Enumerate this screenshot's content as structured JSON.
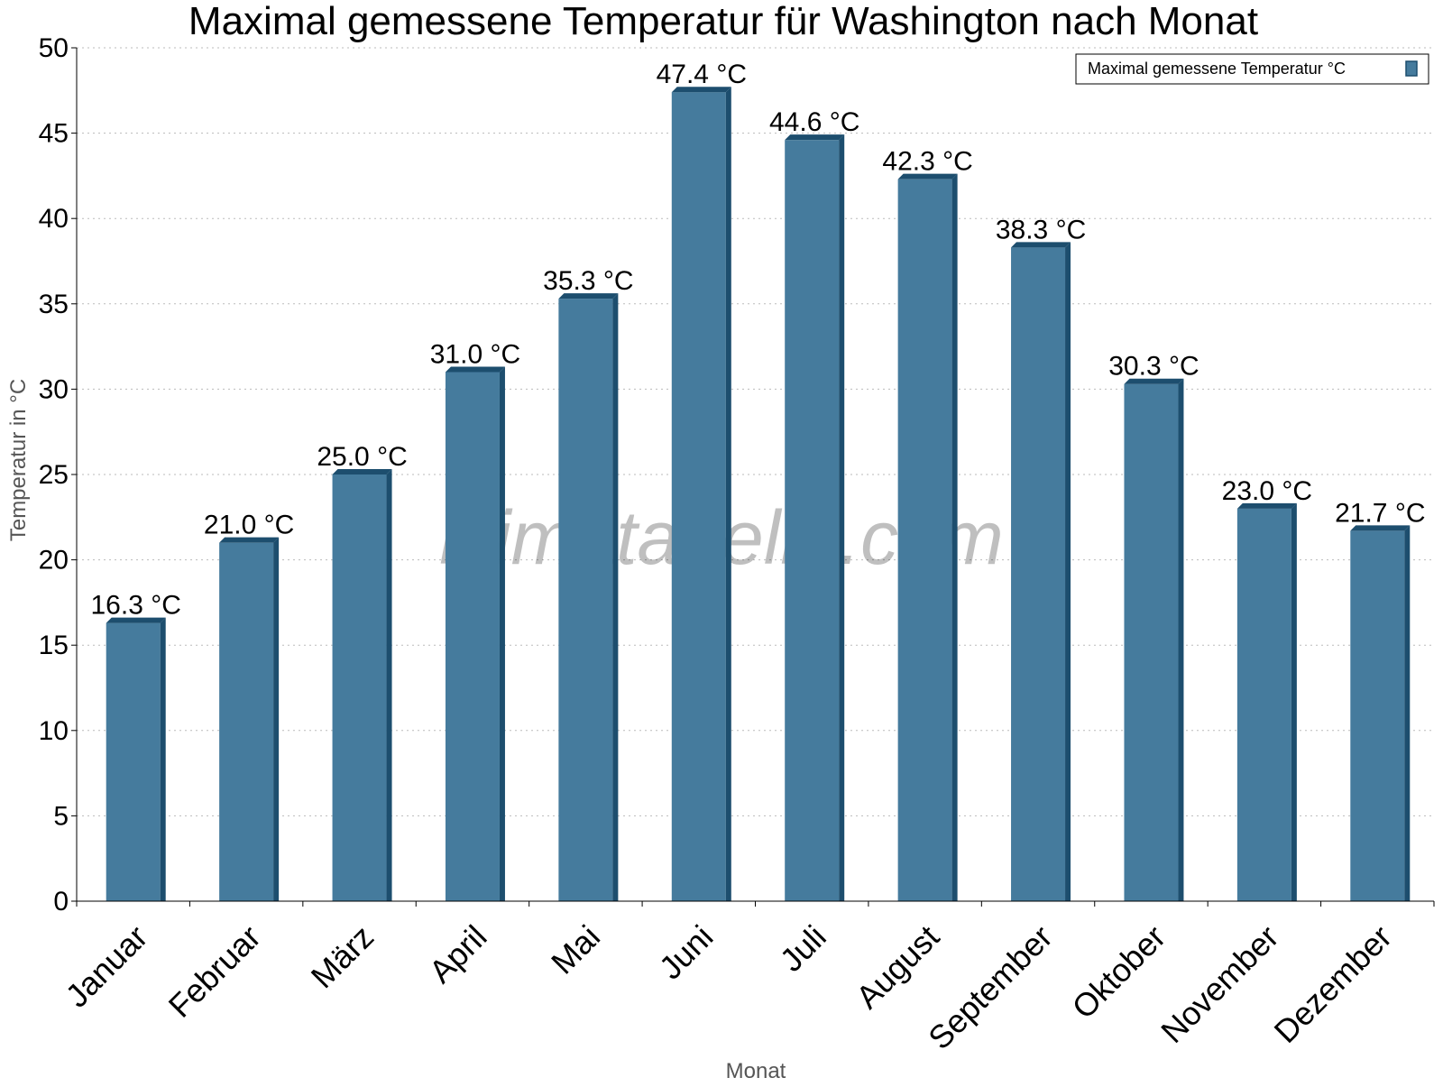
{
  "chart_data": {
    "type": "bar",
    "title": "Maximal gemessene Temperatur für Washington nach Monat",
    "xlabel": "Monat",
    "ylabel": "Temperatur in °C",
    "categories": [
      "Januar",
      "Februar",
      "März",
      "April",
      "Mai",
      "Juni",
      "Juli",
      "August",
      "September",
      "Oktober",
      "November",
      "Dezember"
    ],
    "series": [
      {
        "name": "Maximal gemessene Temperatur °C",
        "values": [
          16.3,
          21.0,
          25.0,
          31.0,
          35.3,
          47.4,
          44.6,
          42.3,
          38.3,
          30.3,
          23.0,
          21.7
        ],
        "data_labels": [
          "16.3 °C",
          "21.0 °C",
          "25.0 °C",
          "31.0 °C",
          "35.3 °C",
          "47.4 °C",
          "44.6 °C",
          "42.3 °C",
          "38.3 °C",
          "30.3 °C",
          "23.0 °C",
          "21.7 °C"
        ],
        "color": "#457B9D",
        "edge_color": "#1D4E6E"
      }
    ],
    "yticks": [
      "0",
      "5",
      "10",
      "15",
      "20",
      "25",
      "30",
      "35",
      "40",
      "45",
      "50"
    ],
    "ylim": [
      0,
      50
    ],
    "grid": true,
    "legend_position": "top-right",
    "watermark": "klimatabelle.com"
  }
}
